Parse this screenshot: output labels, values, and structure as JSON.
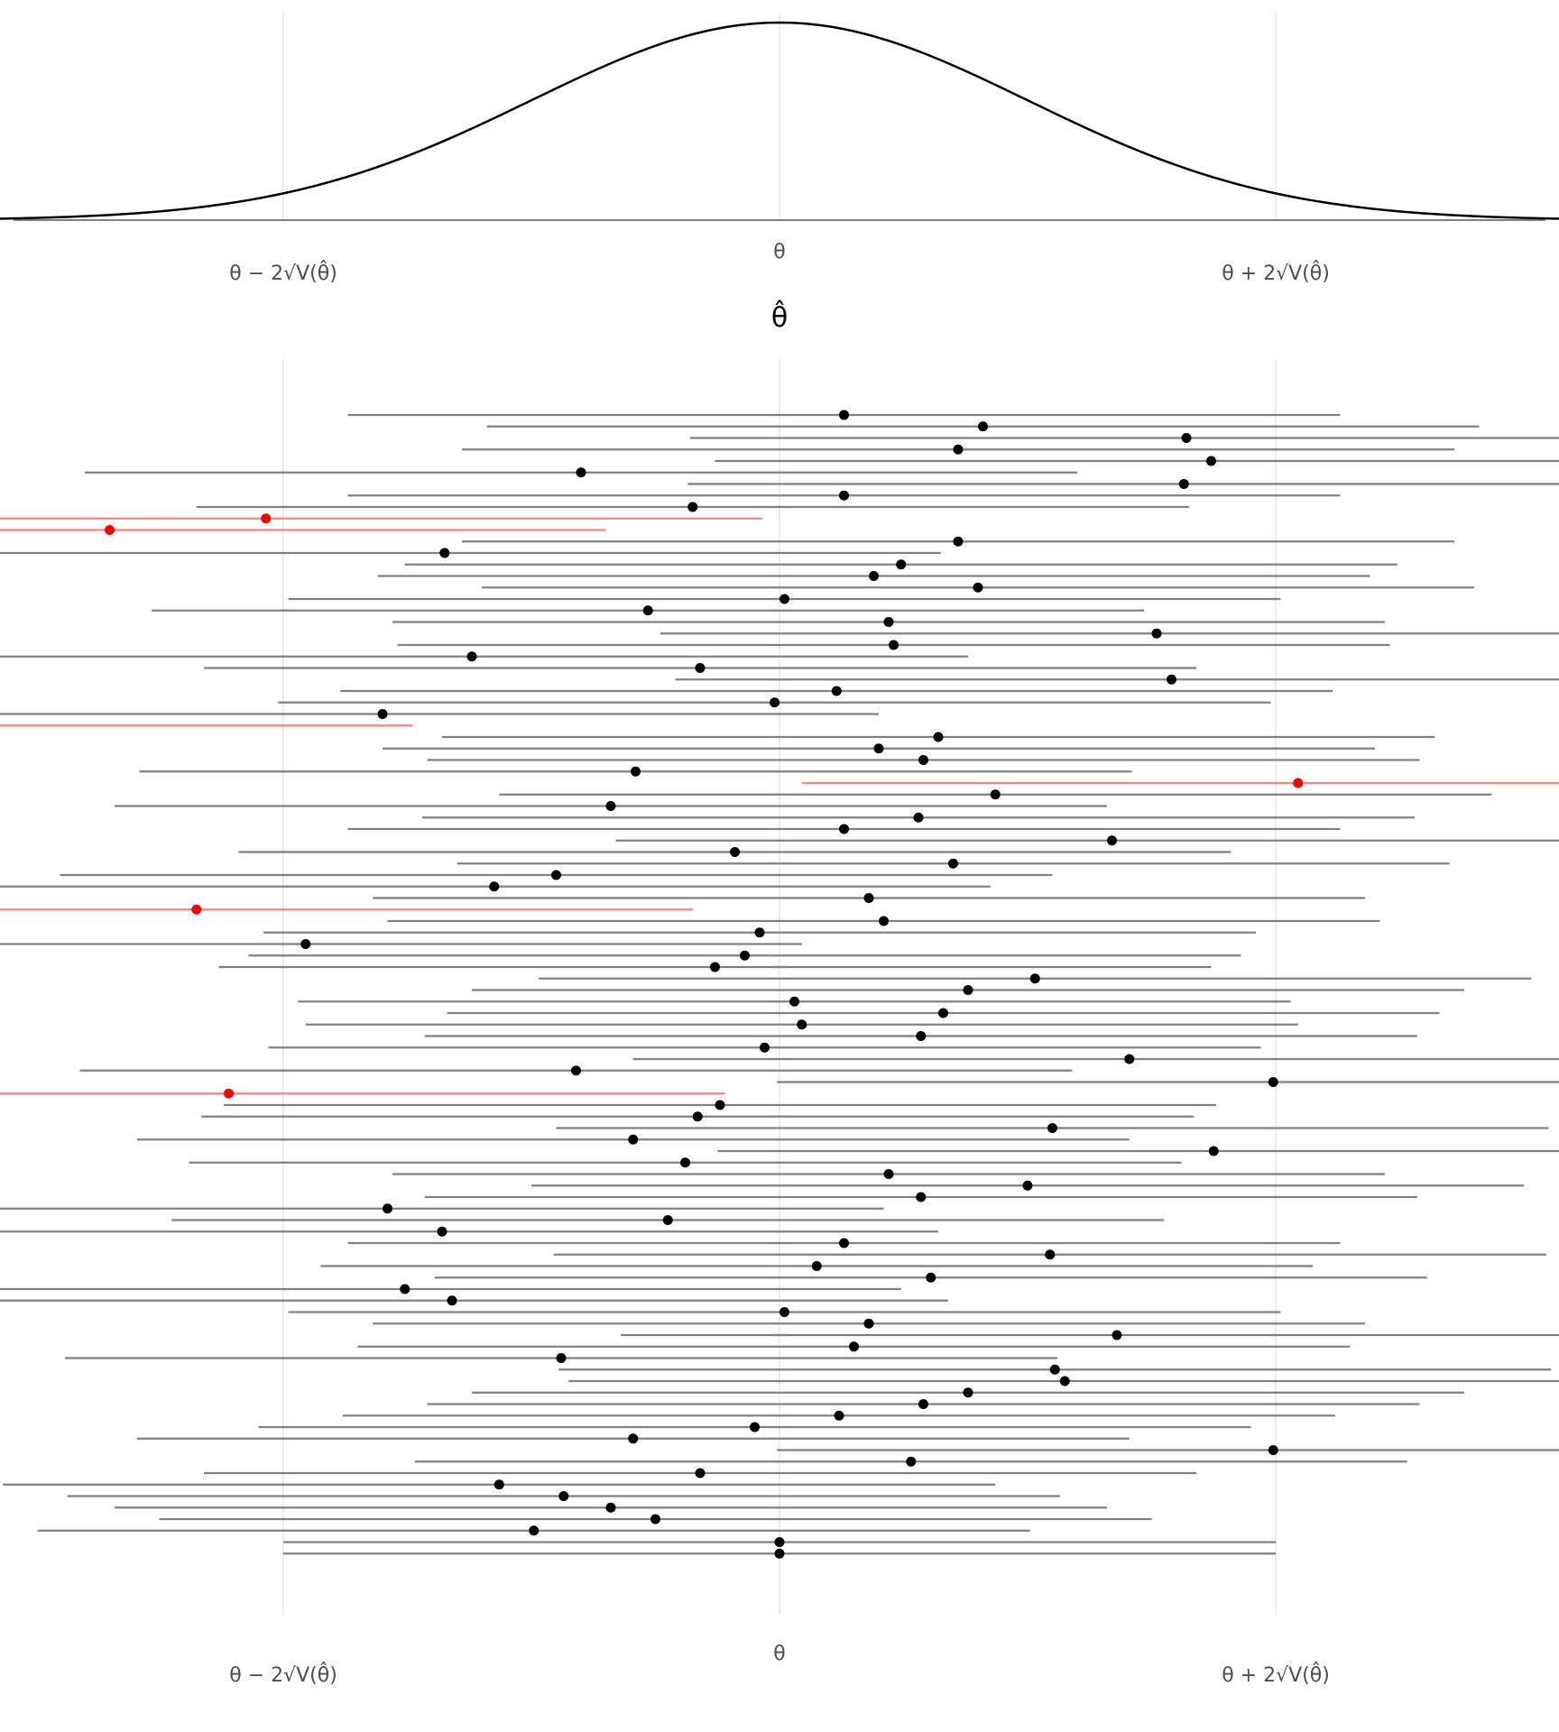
{
  "chart_data": [
    {
      "type": "line",
      "title": "",
      "xlabel": "θ̂",
      "ylabel": "",
      "xlim": [
        -3.1,
        3.1
      ],
      "grid": true,
      "x_ticks": [
        {
          "value": -2,
          "label": "θ − 2√V(θ̂)"
        },
        {
          "value": 0,
          "label": "θ"
        },
        {
          "value": 2,
          "label": "θ + 2√V(θ̂)"
        }
      ],
      "curve": {
        "name": "",
        "kind": "normal-density",
        "mean": 0,
        "sd": 1,
        "x_range": [
          -3.5,
          3.5
        ]
      },
      "colors": {
        "curve": "#000000",
        "baseline": "#808080",
        "grid": "#e6e6e6"
      }
    },
    {
      "type": "scatter",
      "title": "",
      "xlabel": "",
      "ylabel": "",
      "xlim": [
        -3.1,
        3.1
      ],
      "grid": true,
      "interval_halfwidth": 2,
      "x_ticks": [
        {
          "value": -2,
          "label": "θ − 2√V(θ̂)"
        },
        {
          "value": 0,
          "label": "θ"
        },
        {
          "value": 2,
          "label": "θ + 2√V(θ̂)"
        }
      ],
      "colors": {
        "covers": "#000000",
        "covers_line": "#808080",
        "misses": "#ff0000",
        "misses_line": "#ff8080"
      },
      "estimates": [
        0.26,
        0.82,
        1.64,
        0.72,
        1.74,
        -0.8,
        1.63,
        0.26,
        -0.35,
        -2.07,
        -2.7,
        0.72,
        -1.35,
        0.49,
        0.38,
        0.8,
        0.02,
        -0.53,
        0.44,
        1.52,
        0.46,
        -1.24,
        -0.32,
        1.58,
        0.23,
        -0.02,
        -1.6,
        -3.48,
        0.64,
        0.4,
        0.58,
        -0.58,
        2.09,
        0.87,
        -0.68,
        0.56,
        0.26,
        1.34,
        -0.18,
        0.7,
        -0.9,
        -1.15,
        0.36,
        -2.35,
        0.42,
        -0.08,
        -1.91,
        -0.14,
        -0.26,
        1.03,
        0.76,
        0.06,
        0.66,
        0.09,
        0.57,
        -0.06,
        1.41,
        -0.82,
        1.99,
        -2.22,
        -0.24,
        -0.33,
        1.1,
        -0.59,
        1.75,
        -0.38,
        0.44,
        1.0,
        0.57,
        -1.58,
        -0.45,
        -1.36,
        0.26,
        1.09,
        0.15,
        0.61,
        -1.51,
        -1.32,
        0.02,
        0.36,
        1.36,
        0.3,
        -0.88,
        1.11,
        1.15,
        0.76,
        0.58,
        0.24,
        -0.1,
        -0.59,
        1.99,
        0.53,
        -0.32,
        -1.13,
        -0.87,
        -0.68,
        -0.5,
        -0.99,
        0.0,
        0.0
      ]
    }
  ]
}
